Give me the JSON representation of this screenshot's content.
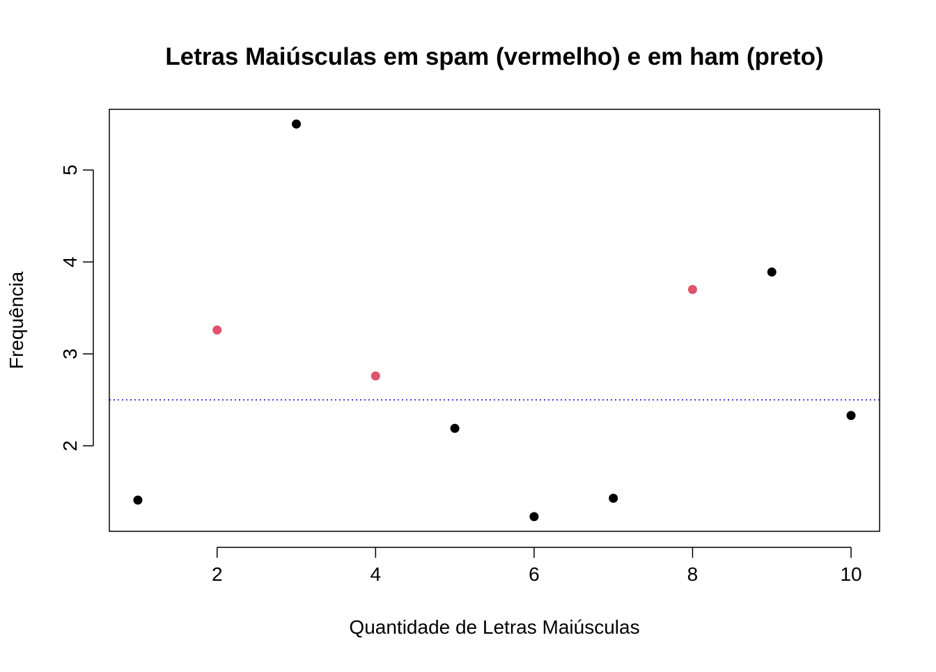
{
  "chart_data": {
    "type": "scatter",
    "title": "Letras Maiúsculas em spam (vermelho) e em ham (preto)",
    "xlabel": "Quantidade de Letras Maiúsculas",
    "ylabel": "Frequência",
    "xlim": [
      0.64,
      10.36
    ],
    "ylim": [
      1.07,
      5.66
    ],
    "x_ticks": [
      2,
      4,
      6,
      8,
      10
    ],
    "y_ticks": [
      2,
      3,
      4,
      5
    ],
    "x_tick_labels": [
      "2",
      "4",
      "6",
      "8",
      "10"
    ],
    "y_tick_labels": [
      "2",
      "3",
      "4",
      "5"
    ],
    "grid": false,
    "legend": "none",
    "series": [
      {
        "color": "#000000",
        "points": [
          {
            "x": 1,
            "y": 1.41
          },
          {
            "x": 3,
            "y": 5.5
          },
          {
            "x": 5,
            "y": 2.19
          },
          {
            "x": 6,
            "y": 1.23
          },
          {
            "x": 7,
            "y": 1.43
          },
          {
            "x": 9,
            "y": 3.89
          },
          {
            "x": 10,
            "y": 2.33
          }
        ]
      },
      {
        "color": "#DF536B",
        "points": [
          {
            "x": 2,
            "y": 3.26
          },
          {
            "x": 4,
            "y": 2.76
          },
          {
            "x": 8,
            "y": 3.7
          }
        ]
      }
    ],
    "reference_line": {
      "orientation": "horizontal",
      "y": 2.5,
      "style": "dotted",
      "color": "#0000CD"
    }
  }
}
